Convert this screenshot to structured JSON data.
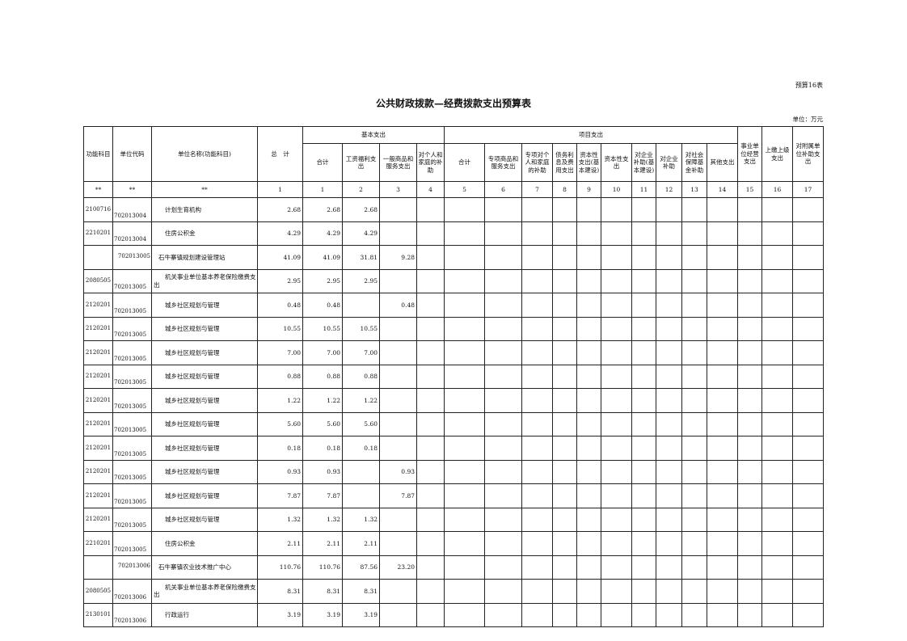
{
  "form_no": "预算16表",
  "title": "公共财政拨款—经费拨款支出预算表",
  "unit_label": "单位：万元",
  "headers": {
    "func": "功能科目",
    "code": "单位代码",
    "name": "单位名称(功能科目)",
    "total": "总　计",
    "basic": "基本支出",
    "project": "项目支出",
    "basic_cols": [
      "合计",
      "工资福利支出",
      "一般商品和服务支出",
      "对个人和家庭的补助"
    ],
    "project_cols": [
      "合计",
      "专项商品和服务支出",
      "专项对个人和家庭的补助",
      "债务利息及费用支出",
      "资本性支出(基本建设)",
      "资本性支出",
      "对企业补助(基本建设)",
      "对企业补助",
      "对社会保障基金补助",
      "其他支出"
    ],
    "other_cols": [
      "事业单位经营支出",
      "上缴上级支出",
      "对附属单位补助支出"
    ],
    "index_row": [
      "**",
      "**",
      "**",
      "1",
      "1",
      "2",
      "3",
      "4",
      "5",
      "6",
      "7",
      "8",
      "9",
      "10",
      "11",
      "12",
      "13",
      "14",
      "15",
      "16",
      "17"
    ]
  },
  "rows": [
    [
      "2100716",
      "702013004",
      "计划生育机构",
      "2.68",
      "2.68",
      "2.68",
      "",
      ""
    ],
    [
      "2210201",
      "702013004",
      "住房公积金",
      "4.29",
      "4.29",
      "4.29",
      "",
      ""
    ],
    [
      "",
      "702013005",
      "石牛寨镇规划建设管理站",
      "41.09",
      "41.09",
      "31.81",
      "9.28",
      ""
    ],
    [
      "2080505",
      "702013005",
      "机关事业单位基本养老保险缴费支出",
      "2.95",
      "2.95",
      "2.95",
      "",
      ""
    ],
    [
      "2120201",
      "702013005",
      "城乡社区规划与管理",
      "0.48",
      "0.48",
      "",
      "0.48",
      ""
    ],
    [
      "2120201",
      "702013005",
      "城乡社区规划与管理",
      "10.55",
      "10.55",
      "10.55",
      "",
      ""
    ],
    [
      "2120201",
      "702013005",
      "城乡社区规划与管理",
      "7.00",
      "7.00",
      "7.00",
      "",
      ""
    ],
    [
      "2120201",
      "702013005",
      "城乡社区规划与管理",
      "0.88",
      "0.88",
      "0.88",
      "",
      ""
    ],
    [
      "2120201",
      "702013005",
      "城乡社区规划与管理",
      "1.22",
      "1.22",
      "1.22",
      "",
      ""
    ],
    [
      "2120201",
      "702013005",
      "城乡社区规划与管理",
      "5.60",
      "5.60",
      "5.60",
      "",
      ""
    ],
    [
      "2120201",
      "702013005",
      "城乡社区规划与管理",
      "0.18",
      "0.18",
      "0.18",
      "",
      ""
    ],
    [
      "2120201",
      "702013005",
      "城乡社区规划与管理",
      "0.93",
      "0.93",
      "",
      "0.93",
      ""
    ],
    [
      "2120201",
      "702013005",
      "城乡社区规划与管理",
      "7.87",
      "7.87",
      "",
      "7.87",
      ""
    ],
    [
      "2120201",
      "702013005",
      "城乡社区规划与管理",
      "1.32",
      "1.32",
      "1.32",
      "",
      ""
    ],
    [
      "2210201",
      "702013005",
      "住房公积金",
      "2.11",
      "2.11",
      "2.11",
      "",
      ""
    ],
    [
      "",
      "702013006",
      "石牛寨镇农业技术推广中心",
      "110.76",
      "110.76",
      "87.56",
      "23.20",
      ""
    ],
    [
      "2080505",
      "702013006",
      "机关事业单位基本养老保险缴费支出",
      "8.31",
      "8.31",
      "8.31",
      "",
      ""
    ],
    [
      "2130101",
      "702013006",
      "行政运行",
      "3.19",
      "3.19",
      "3.19",
      "",
      ""
    ]
  ]
}
